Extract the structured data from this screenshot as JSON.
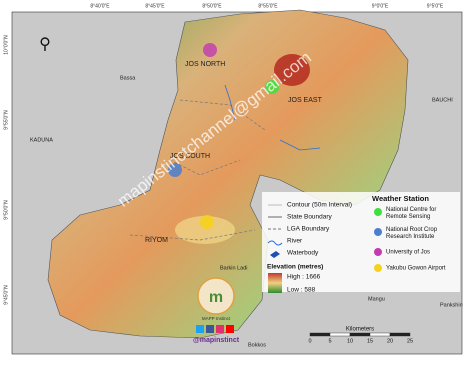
{
  "grid_labels": {
    "top": [
      "8°40'0\"E",
      "8°45'0\"E",
      "8°50'0\"E",
      "8°55'0\"E",
      "9°0'0\"E",
      "9°5'0\"E"
    ],
    "left": [
      "10°0'0\"N",
      "9°55'0\"N",
      "9°50'0\"N",
      "9°45'0\"N"
    ]
  },
  "places": [
    "Bassa",
    "KADUNA",
    "BAUCHI",
    "Barkin Ladi",
    "Mangu",
    "Bokkos",
    "Pankshin"
  ],
  "lgas": [
    "JOS NORTH",
    "JOS EAST",
    "JOS SOUTH",
    "RIYOM"
  ],
  "watermark": "mapinstinctchannel@gmail.com",
  "legend": {
    "items": [
      "Contour (50m Interval)",
      "State Boundary",
      "LGA Boundary",
      "River",
      "Waterbody"
    ],
    "elevation": {
      "title": "Elevation (metres)",
      "high": "High : 1666",
      "low": "Low : 588"
    }
  },
  "weather_station": {
    "title": "Weather Station",
    "stations": [
      "National Centre for Remote Sensing",
      "National Root Crop Research Institute",
      "University of Jos",
      "Yakubu Gowon Airport"
    ]
  },
  "scale": {
    "title": "Kilometers",
    "ticks": [
      "0",
      "5",
      "10",
      "15",
      "20",
      "25"
    ]
  },
  "logo": {
    "name": "MAPP Instinct",
    "handle": "@mapinstinct"
  }
}
